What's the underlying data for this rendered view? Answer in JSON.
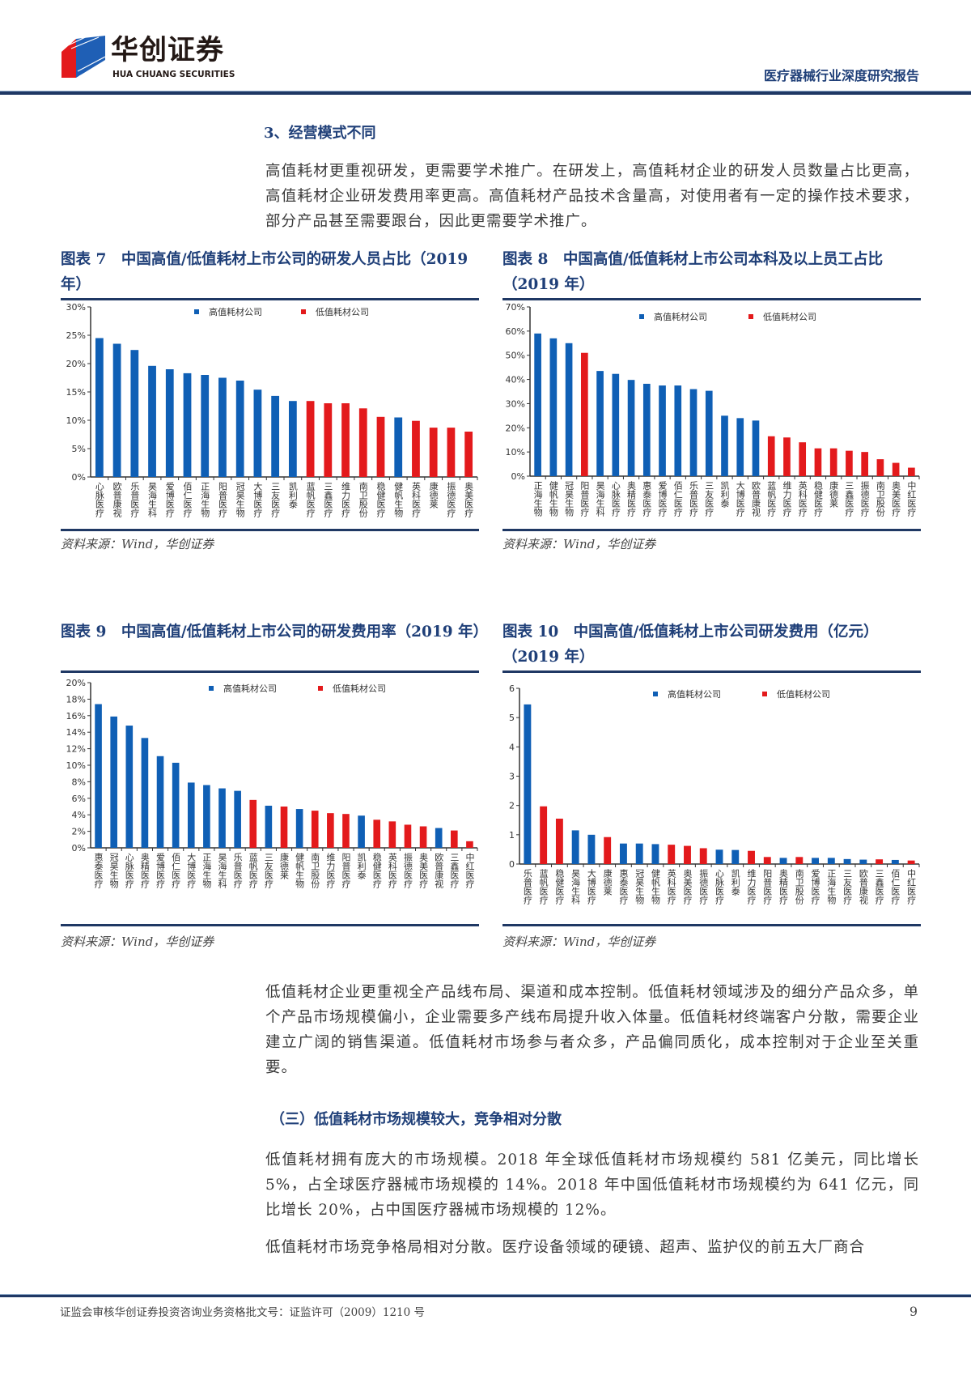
{
  "header": {
    "logo_cn": "华创证券",
    "logo_en": "HUA CHUANG SECURITIES",
    "report_type": "医疗器械行业深度研究报告"
  },
  "section3": {
    "heading": "3、经营模式不同",
    "paragraph": "高值耗材更重视研发，更需要学术推广。在研发上，高值耗材企业的研发人员数量占比更高，高值耗材企业研发费用率更高。高值耗材产品技术含量高，对使用者有一定的操作技术要求，部分产品甚至需要跟台，因此更需要学术推广。"
  },
  "figures": [
    {
      "title": "图表 7　中国高值/低值耗材上市公司的研发人员占比（2019 年）",
      "source": "资料来源：Wind，华创证券"
    },
    {
      "title": "图表 8　中国高值/低值耗材上市公司本科及以上员工占比（2019 年）",
      "source": "资料来源：Wind，华创证券"
    },
    {
      "title": "图表 9　中国高值/低值耗材上市公司的研发费用率（2019 年）",
      "source": "资料来源：Wind，华创证券"
    },
    {
      "title": "图表 10　中国高值/低值耗材上市公司研发费用（亿元）（2019 年）",
      "source": "资料来源：Wind，华创证券"
    }
  ],
  "colors": {
    "high_value": "#0f5fb5",
    "low_value": "#e31a1c",
    "heading": "#1f3f78",
    "rule": "#1f3864"
  },
  "chart_data": [
    {
      "type": "bar",
      "legend": [
        "高值耗材公司",
        "低值耗材公司"
      ],
      "legend_position": "top-center",
      "ylim": [
        0,
        30
      ],
      "yticks": [
        "0%",
        "5%",
        "10%",
        "15%",
        "20%",
        "25%",
        "30%"
      ],
      "ystep": 5,
      "categories": [
        "心脉医疗",
        "欧普康视",
        "乐普医疗",
        "昊海生科",
        "爱博医疗",
        "佰仁医疗",
        "正海生物",
        "阳普医疗",
        "冠昊生物",
        "大博医疗",
        "三友医疗",
        "凯利泰",
        "蓝帆医疗",
        "三鑫医疗",
        "维力医疗",
        "南卫股份",
        "稳健医疗",
        "健帆生物",
        "英科医疗",
        "康德莱",
        "振德医疗",
        "奥美医疗"
      ],
      "values": [
        24.5,
        23.5,
        22.4,
        19.6,
        19.0,
        18.3,
        18.0,
        17.5,
        17.0,
        15.4,
        14.3,
        13.4,
        13.4,
        13.0,
        13.0,
        12.1,
        10.6,
        10.5,
        9.9,
        8.7,
        8.7,
        8.0
      ],
      "groups": [
        "high",
        "high",
        "high",
        "high",
        "high",
        "high",
        "high",
        "high",
        "high",
        "high",
        "high",
        "high",
        "low",
        "low",
        "low",
        "low",
        "low",
        "high",
        "low",
        "low",
        "low",
        "low"
      ]
    },
    {
      "type": "bar",
      "legend": [
        "高值耗材公司",
        "低值耗材公司"
      ],
      "legend_position": "top-center",
      "ylim": [
        0,
        70
      ],
      "yticks": [
        "0%",
        "10%",
        "20%",
        "30%",
        "40%",
        "50%",
        "60%",
        "70%"
      ],
      "ystep": 10,
      "categories": [
        "正海生物",
        "健帆生物",
        "冠昊生物",
        "阳普医疗",
        "昊海生科",
        "心脉医疗",
        "奥精医疗",
        "惠泰医疗",
        "爱博医疗",
        "佰仁医疗",
        "乐普医疗",
        "三友医疗",
        "凯利泰",
        "大博医疗",
        "欧普康视",
        "蓝帆医疗",
        "维力医疗",
        "英科医疗",
        "稳健医疗",
        "康德莱",
        "三鑫医疗",
        "振德医疗",
        "南卫股份",
        "奥美医疗",
        "中红医疗"
      ],
      "values": [
        59,
        57,
        55,
        51,
        43.5,
        42.3,
        39.8,
        38.2,
        37.5,
        37.5,
        36,
        35.3,
        25,
        24,
        23,
        16.5,
        16,
        14,
        11.5,
        11.5,
        10.5,
        10,
        7,
        5.5,
        3.5
      ],
      "groups": [
        "high",
        "high",
        "high",
        "low",
        "high",
        "high",
        "high",
        "high",
        "high",
        "high",
        "high",
        "high",
        "high",
        "high",
        "high",
        "low",
        "low",
        "low",
        "low",
        "low",
        "low",
        "low",
        "low",
        "low",
        "low"
      ]
    },
    {
      "type": "bar",
      "legend": [
        "高值耗材公司",
        "低值耗材公司"
      ],
      "legend_position": "top-center",
      "ylim": [
        0,
        20
      ],
      "yticks": [
        "0%",
        "2%",
        "4%",
        "6%",
        "8%",
        "10%",
        "12%",
        "14%",
        "16%",
        "18%",
        "20%"
      ],
      "ystep": 2,
      "categories": [
        "惠泰医疗",
        "冠昊生物",
        "心脉医疗",
        "奥精医疗",
        "爱博医疗",
        "佰仁医疗",
        "大博医疗",
        "正海生物",
        "昊海生科",
        "乐普医疗",
        "蓝帆医疗",
        "三友医疗",
        "康德莱",
        "健帆生物",
        "南卫股份",
        "维力医疗",
        "阳普医疗",
        "凯利泰",
        "稳健医疗",
        "英科医疗",
        "振德医疗",
        "奥美医疗",
        "欧普康视",
        "三鑫医疗",
        "中红医疗"
      ],
      "values": [
        17.4,
        15.9,
        14.8,
        13.3,
        11.1,
        10.3,
        7.9,
        7.6,
        7.2,
        6.9,
        5.8,
        5.1,
        5.0,
        4.7,
        4.5,
        4.2,
        4.1,
        3.9,
        3.4,
        3.2,
        2.8,
        2.6,
        2.4,
        2.1,
        0.8
      ],
      "groups": [
        "high",
        "high",
        "high",
        "high",
        "high",
        "high",
        "high",
        "high",
        "high",
        "high",
        "low",
        "high",
        "low",
        "high",
        "low",
        "low",
        "low",
        "high",
        "low",
        "low",
        "low",
        "low",
        "high",
        "low",
        "low"
      ]
    },
    {
      "type": "bar",
      "legend": [
        "高值耗材公司",
        "低值耗材公司"
      ],
      "legend_position": "top-center",
      "ylim": [
        0,
        6
      ],
      "yticks": [
        "0",
        "1",
        "2",
        "3",
        "4",
        "5",
        "6"
      ],
      "ystep": 1,
      "categories": [
        "乐普医疗",
        "蓝帆医疗",
        "稳健医疗",
        "昊海生科",
        "大博医疗",
        "康德莱",
        "惠泰医疗",
        "冠昊生物",
        "健帆生物",
        "英科医疗",
        "奥美医疗",
        "振德医疗",
        "心脉医疗",
        "凯利泰",
        "维力医疗",
        "阳普医疗",
        "奥精医疗",
        "南卫股份",
        "爱博医疗",
        "正海生物",
        "三友医疗",
        "欧普康视",
        "三鑫医疗",
        "佰仁医疗",
        "中红医疗"
      ],
      "values": [
        5.45,
        1.97,
        1.55,
        1.15,
        1.0,
        0.92,
        0.7,
        0.7,
        0.68,
        0.66,
        0.62,
        0.54,
        0.49,
        0.48,
        0.45,
        0.24,
        0.21,
        0.24,
        0.21,
        0.21,
        0.17,
        0.15,
        0.16,
        0.14,
        0.12
      ],
      "groups": [
        "high",
        "low",
        "low",
        "high",
        "high",
        "low",
        "high",
        "high",
        "high",
        "low",
        "low",
        "low",
        "high",
        "high",
        "low",
        "low",
        "high",
        "low",
        "high",
        "high",
        "high",
        "high",
        "low",
        "high",
        "low"
      ]
    }
  ],
  "body2": {
    "paragraph1": "低值耗材企业更重视全产品线布局、渠道和成本控制。低值耗材领域涉及的细分产品众多，单个产品市场规模偏小，企业需要多产线布局提升收入体量。低值耗材终端客户分散，需要企业建立广阔的销售渠道。低值耗材市场参与者众多，产品偏同质化，成本控制对于企业至关重要。",
    "heading": "（三）低值耗材市场规模较大，竞争相对分散",
    "paragraph2": "低值耗材拥有庞大的市场规模。2018 年全球低值耗材市场规模约 581 亿美元，同比增长 5%，占全球医疗器械市场规模的 14%。2018 年中国低值耗材市场规模约为 641 亿元，同比增长 20%，占中国医疗器械市场规模的 12%。",
    "paragraph3": "低值耗材市场竞争格局相对分散。医疗设备领域的硬镜、超声、监护仪的前五大厂商合"
  },
  "footer": {
    "license": "证监会审核华创证券投资咨询业务资格批文号：证监许可（2009）1210 号",
    "page_number": "9"
  }
}
